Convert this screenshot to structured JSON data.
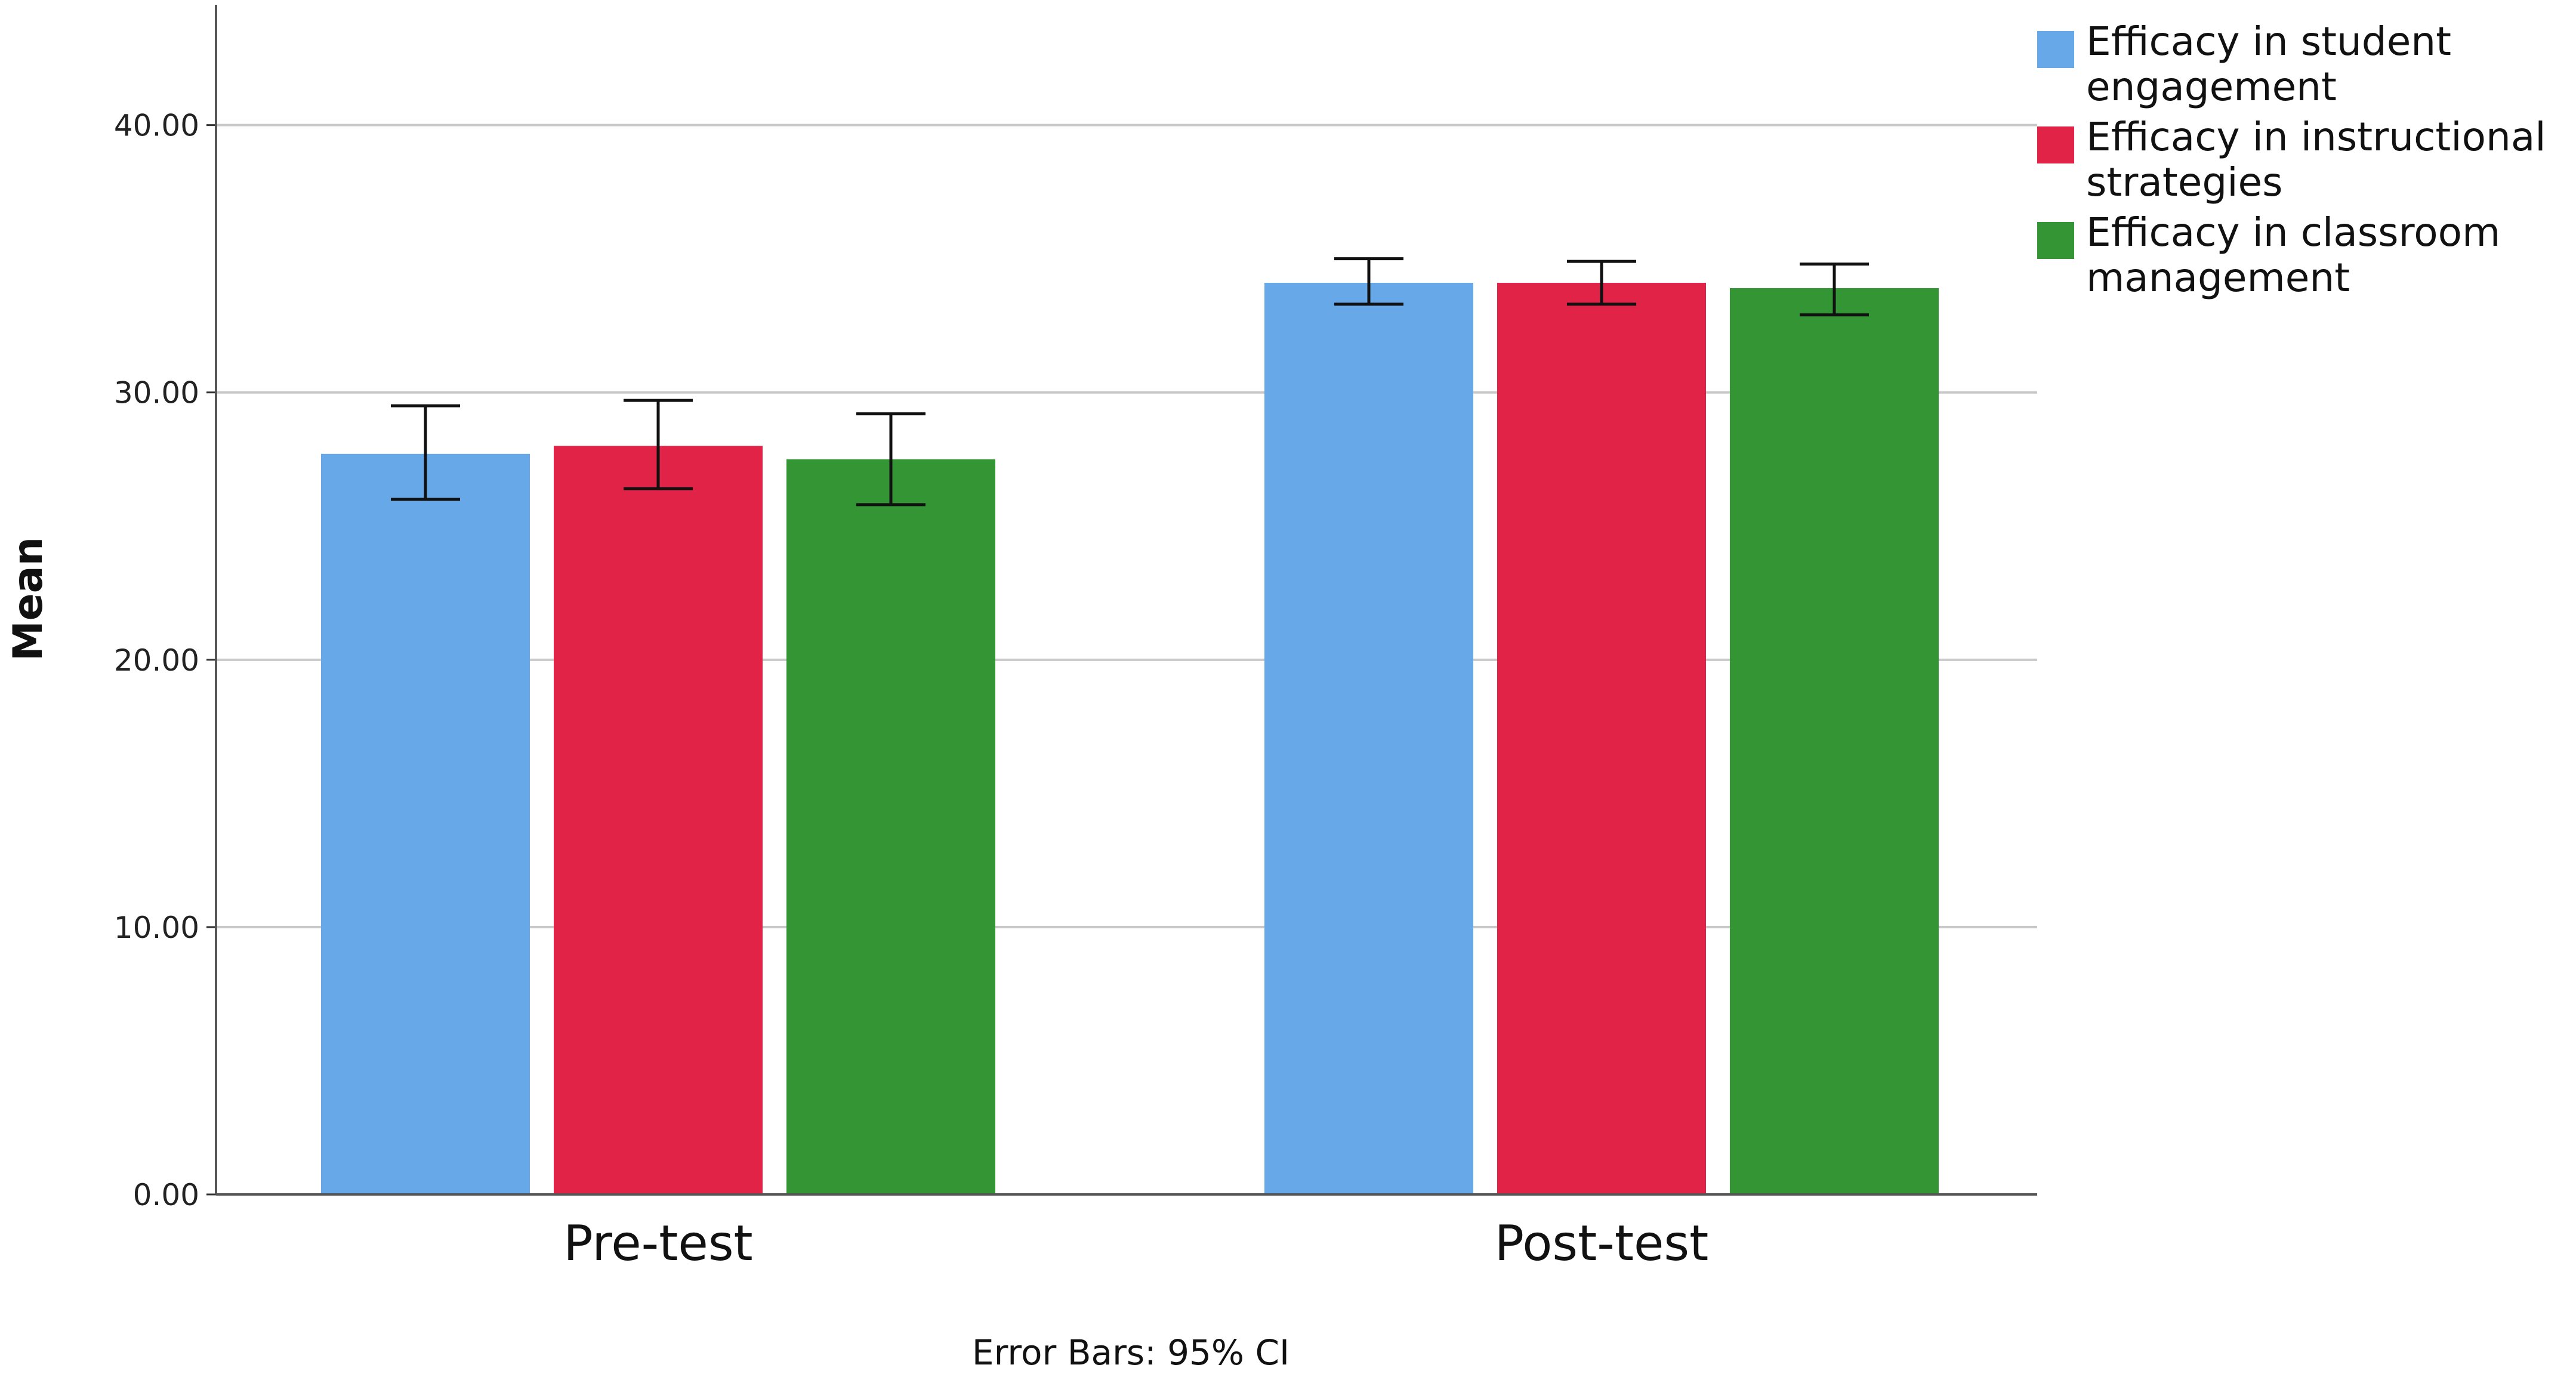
{
  "chart_data": {
    "type": "bar",
    "categories": [
      "Pre-test",
      "Post-test"
    ],
    "series": [
      {
        "name": "Efficacy in student engagement",
        "legend_lines": [
          "Efficacy in student",
          "engagement"
        ],
        "color": "#66a8e8",
        "values": [
          27.7,
          34.1
        ],
        "ci_low": [
          26.0,
          33.3
        ],
        "ci_high": [
          29.5,
          35.0
        ]
      },
      {
        "name": "Efficacy in instructional strategies",
        "legend_lines": [
          "Efficacy in instructional",
          "strategies"
        ],
        "color": "#e02346",
        "values": [
          28.0,
          34.1
        ],
        "ci_low": [
          26.4,
          33.3
        ],
        "ci_high": [
          29.7,
          34.9
        ]
      },
      {
        "name": "Efficacy in classroom management",
        "legend_lines": [
          "Efficacy in classroom",
          "management"
        ],
        "color": "#339533",
        "values": [
          27.5,
          33.9
        ],
        "ci_low": [
          25.8,
          32.9
        ],
        "ci_high": [
          29.2,
          34.8
        ]
      }
    ],
    "yticks": [
      "0.00",
      "10.00",
      "20.00",
      "30.00",
      "40.00"
    ],
    "ylim": [
      0,
      44.5
    ],
    "ylabel": "Mean",
    "xlabel": "",
    "title": "",
    "footnote": "Error Bars: 95% CI",
    "grid": true,
    "legend_position": "top-right"
  }
}
